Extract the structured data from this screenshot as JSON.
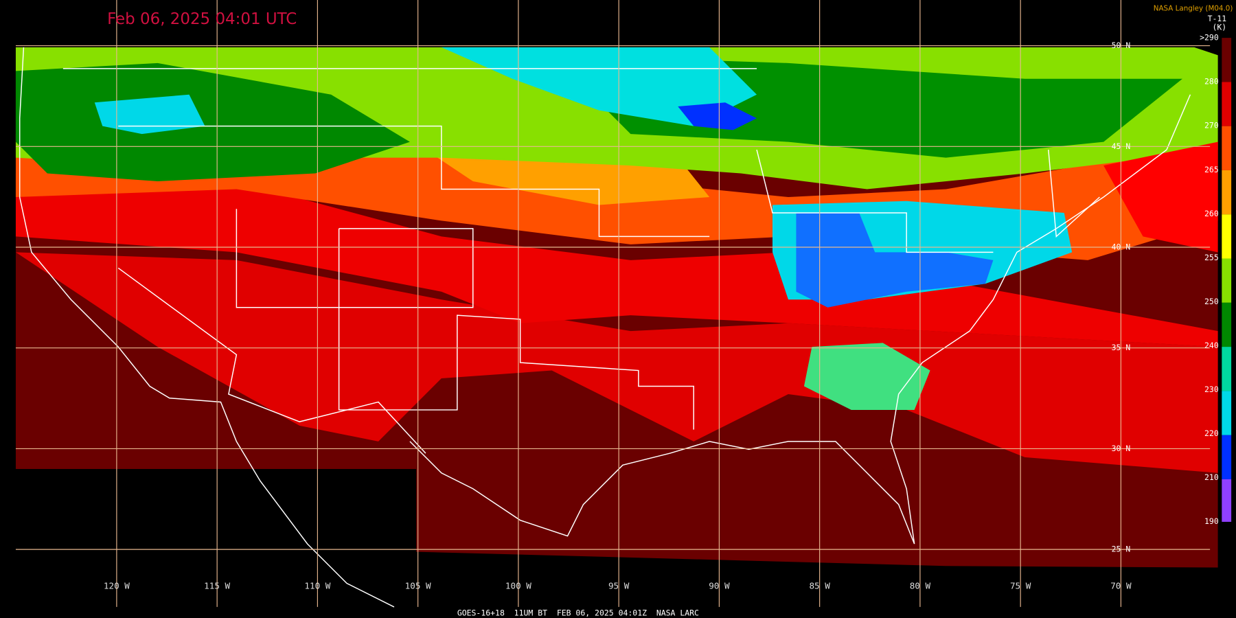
{
  "header": {
    "title": "Feb 06, 2025 04:01 UTC",
    "credit": "NASA Langley (M04.0)",
    "product": "T-11",
    "unit": "(K)"
  },
  "colorbar": {
    "labels": [
      ">290",
      280,
      270,
      265,
      260,
      255,
      250,
      240,
      230,
      220,
      210,
      190
    ]
  },
  "map": {
    "latitude_labels": [
      "50 N",
      "45 N",
      "40 N",
      "35 N",
      "30 N",
      "25 N"
    ],
    "longitude_labels": [
      "120 W",
      "115 W",
      "110 W",
      "105 W",
      "100 W",
      "95 W",
      "90 W",
      "85 W",
      "80 W",
      "75 W",
      "70 W"
    ]
  },
  "footer": "GOES-16+18  11UM BT  FEB 06, 2025 04:01Z  NASA LARC"
}
